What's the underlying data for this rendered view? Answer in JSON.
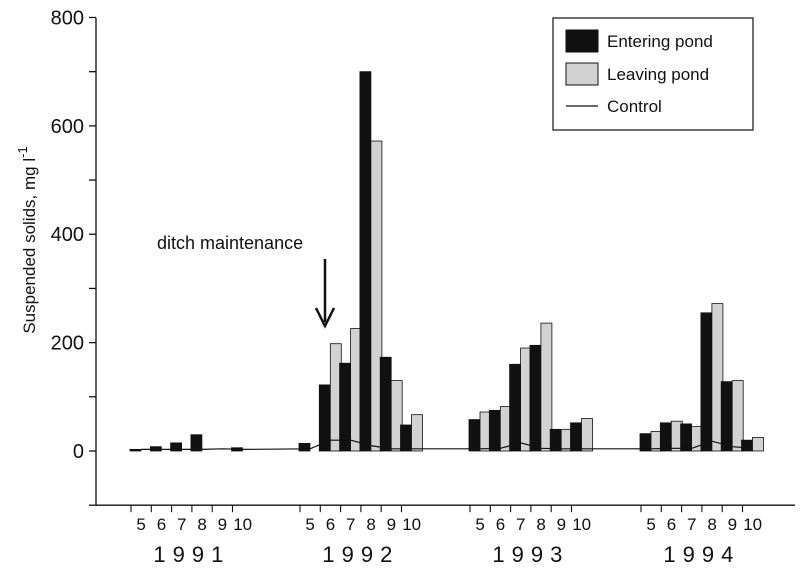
{
  "chart_data": {
    "type": "bar",
    "title": "",
    "ylabel": "Suspended solids, mg l",
    "ylabel_superscript": "-1",
    "ylim": [
      -100,
      800
    ],
    "yticks": [
      0,
      200,
      400,
      600,
      800
    ],
    "grid": false,
    "legend_position": "top-right",
    "years": [
      "1991",
      "1992",
      "1993",
      "1994"
    ],
    "months": [
      "5",
      "6",
      "7",
      "8",
      "9",
      "10"
    ],
    "series": [
      {
        "name": "Entering pond",
        "color": "#111111",
        "values": [
          [
            3,
            8,
            15,
            30,
            null,
            6
          ],
          [
            14,
            122,
            162,
            700,
            173,
            48
          ],
          [
            58,
            75,
            160,
            195,
            40,
            52
          ],
          [
            32,
            52,
            50,
            255,
            128,
            20
          ]
        ]
      },
      {
        "name": "Leaving pond",
        "color": "#d2d2d2",
        "values": [
          [
            null,
            null,
            null,
            null,
            null,
            null
          ],
          [
            null,
            198,
            226,
            572,
            130,
            67
          ],
          [
            72,
            82,
            190,
            236,
            40,
            60
          ],
          [
            36,
            55,
            45,
            272,
            130,
            25
          ]
        ]
      },
      {
        "name": "Control",
        "type": "line",
        "color": "#111111",
        "values": [
          [
            3,
            3,
            3,
            3,
            4,
            3
          ],
          [
            4,
            20,
            20,
            10,
            4,
            4
          ],
          [
            4,
            5,
            15,
            5,
            4,
            4
          ],
          [
            4,
            5,
            5,
            18,
            8,
            5
          ]
        ]
      }
    ],
    "annotation": {
      "text": "ditch maintenance",
      "points_to": {
        "year": "1992",
        "month": "6"
      }
    }
  }
}
